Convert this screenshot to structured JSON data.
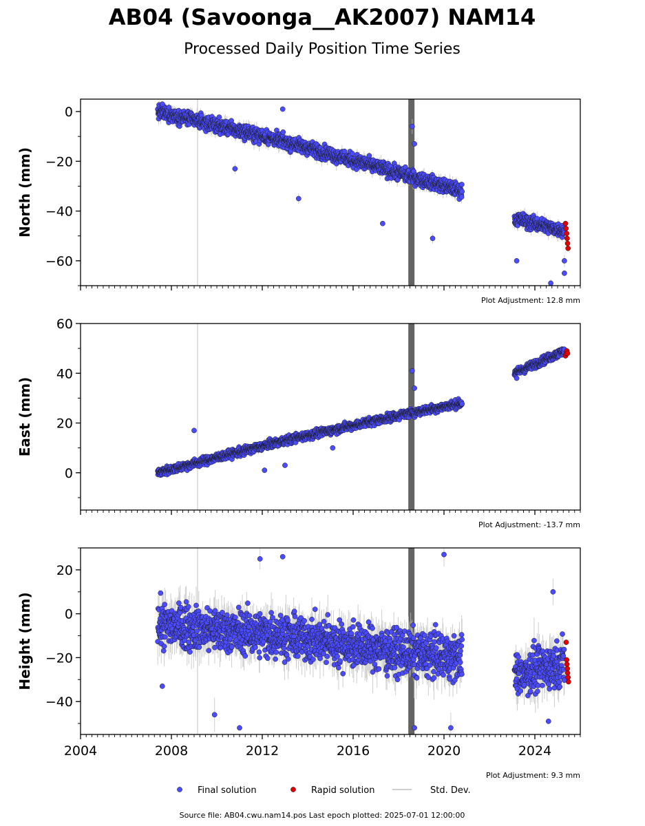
{
  "page": {
    "title": "AB04 (Savoonga__AK2007) NAM14",
    "subtitle": "Processed Daily Position Time Series",
    "footer": "Source file: AB04.cwu.nam14.pos  Last epoch plotted: 2025-07-01 12:00:00"
  },
  "colors": {
    "final": "#4b4bff",
    "rapid": "#e00000",
    "stddev": "#bdbdbd",
    "gap_band": "#646464",
    "marker_edge": "#1a1a1a"
  },
  "legend": [
    {
      "label": "Final solution",
      "marker": "circle",
      "color": "#4b4bff"
    },
    {
      "label": "Rapid solution",
      "marker": "circle",
      "color": "#e00000"
    },
    {
      "label": "Std. Dev.",
      "marker": "line",
      "color": "#bdbdbd"
    }
  ],
  "chart_data": {
    "type": "scatter",
    "x_range": [
      2004.0,
      2026.0
    ],
    "x_ticks": [
      2004,
      2008,
      2012,
      2016,
      2020,
      2024
    ],
    "x_tick_labels": [
      "2004",
      "2008",
      "2012",
      "2016",
      "2020",
      "2024"
    ],
    "x_tick_labels_panel": "bottom only",
    "vertical_markers": [
      {
        "x": 2009.15,
        "style": "thin grey line"
      },
      {
        "x": 2018.55,
        "style": "dark grey band"
      }
    ],
    "data_gap": [
      2020.8,
      2023.1
    ],
    "panels": [
      {
        "ylabel": "North (mm)",
        "ylim": [
          -70,
          5
        ],
        "yticks": [
          0,
          -20,
          -40,
          -60
        ],
        "ytick_labels": [
          "0",
          "−20",
          "−40",
          "−60"
        ],
        "adjustment": "Plot Adjustment: 12.8 mm",
        "final_trend": [
          [
            2007.4,
            0
          ],
          [
            2013.0,
            -12
          ],
          [
            2018.5,
            -26
          ],
          [
            2020.8,
            -32
          ],
          [
            2023.1,
            -43
          ],
          [
            2025.3,
            -48
          ]
        ],
        "final_scatter_mm": 2.5,
        "final_outliers": [
          [
            2007.6,
            3
          ],
          [
            2010.8,
            -23
          ],
          [
            2012.9,
            1
          ],
          [
            2013.6,
            -35
          ],
          [
            2017.3,
            -45
          ],
          [
            2018.6,
            -6
          ],
          [
            2018.7,
            -13
          ],
          [
            2019.5,
            -51
          ],
          [
            2023.2,
            -60
          ],
          [
            2024.7,
            -69
          ],
          [
            2025.3,
            -65
          ],
          [
            2025.3,
            -60
          ]
        ],
        "rapid": [
          [
            2025.35,
            -45
          ],
          [
            2025.37,
            -47
          ],
          [
            2025.4,
            -49
          ],
          [
            2025.42,
            -51
          ],
          [
            2025.44,
            -53
          ],
          [
            2025.46,
            -55
          ]
        ]
      },
      {
        "ylabel": "East (mm)",
        "ylim": [
          -15,
          60
        ],
        "yticks": [
          0,
          20,
          40,
          60
        ],
        "ytick_labels": [
          "0",
          "20",
          "40",
          "60"
        ],
        "adjustment": "Plot Adjustment: -13.7 mm",
        "final_trend": [
          [
            2007.4,
            0
          ],
          [
            2013.0,
            13
          ],
          [
            2018.5,
            24
          ],
          [
            2020.8,
            28
          ],
          [
            2023.1,
            40
          ],
          [
            2025.3,
            49
          ]
        ],
        "final_scatter_mm": 1.5,
        "final_outliers": [
          [
            2009.0,
            17
          ],
          [
            2012.1,
            1
          ],
          [
            2013.0,
            3
          ],
          [
            2015.1,
            10
          ],
          [
            2018.6,
            41
          ],
          [
            2018.7,
            34
          ],
          [
            2023.2,
            38
          ]
        ],
        "rapid": [
          [
            2025.35,
            47
          ],
          [
            2025.38,
            48
          ],
          [
            2025.41,
            49
          ],
          [
            2025.44,
            48
          ]
        ]
      },
      {
        "ylabel": "Height (mm)",
        "ylim": [
          -55,
          30
        ],
        "yticks": [
          20,
          0,
          -20,
          -40
        ],
        "ytick_labels": [
          "20",
          "0",
          "−20",
          "−40"
        ],
        "adjustment": "Plot Adjustment: 9.3 mm",
        "final_trend": [
          [
            2007.4,
            -5
          ],
          [
            2013.0,
            -10
          ],
          [
            2018.5,
            -18
          ],
          [
            2020.8,
            -20
          ],
          [
            2023.1,
            -28
          ],
          [
            2025.3,
            -22
          ]
        ],
        "final_scatter_mm": 9,
        "final_outliers": [
          [
            2007.6,
            -33
          ],
          [
            2009.9,
            -46
          ],
          [
            2011.0,
            -52
          ],
          [
            2011.9,
            25
          ],
          [
            2012.9,
            26
          ],
          [
            2020.0,
            27
          ],
          [
            2018.7,
            -52
          ],
          [
            2020.3,
            -52
          ],
          [
            2024.6,
            -49
          ],
          [
            2024.8,
            10
          ]
        ],
        "rapid": [
          [
            2025.38,
            -13
          ],
          [
            2025.4,
            -21
          ],
          [
            2025.41,
            -23
          ],
          [
            2025.43,
            -25
          ],
          [
            2025.44,
            -27
          ],
          [
            2025.46,
            -29
          ],
          [
            2025.48,
            -31
          ]
        ]
      }
    ]
  }
}
